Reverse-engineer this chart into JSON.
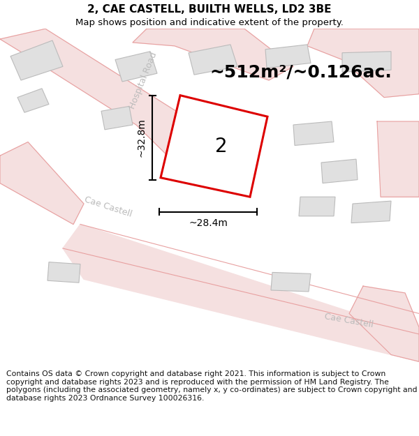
{
  "title_line1": "2, CAE CASTELL, BUILTH WELLS, LD2 3BE",
  "title_line2": "Map shows position and indicative extent of the property.",
  "footer_text": "Contains OS data © Crown copyright and database right 2021. This information is subject to Crown copyright and database rights 2023 and is reproduced with the permission of HM Land Registry. The polygons (including the associated geometry, namely x, y co-ordinates) are subject to Crown copyright and database rights 2023 Ordnance Survey 100026316.",
  "area_label": "~512m²/~0.126ac.",
  "width_label": "~28.4m",
  "height_label": "~32.8m",
  "plot_number": "2",
  "road_color": "#e8a0a0",
  "road_fill": "#f5e0e0",
  "building_color": "#bbbbbb",
  "building_fill": "#e0e0e0",
  "plot_border_color": "#dd0000",
  "plot_fill": "#ffffff",
  "dim_line_color": "#000000",
  "text_color": "#000000",
  "road_text_color": "#bbbbbb",
  "title_fontsize": 11,
  "subtitle_fontsize": 9.5,
  "area_fontsize": 18,
  "plot_num_fontsize": 20,
  "dim_fontsize": 10,
  "road_label_fontsize": 9,
  "footer_fontsize": 7.8
}
